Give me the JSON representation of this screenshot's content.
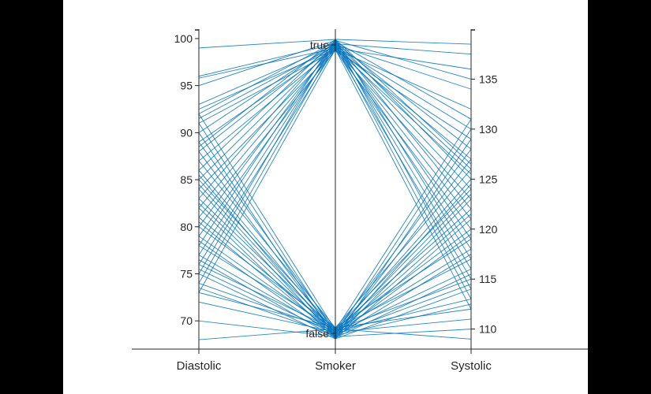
{
  "chart_data": {
    "type": "parallel-coordinates",
    "line_color": "#0072BD",
    "axes": [
      {
        "name": "Diastolic",
        "kind": "numeric",
        "range": [
          67,
          101
        ],
        "ticks": [
          70,
          75,
          80,
          85,
          90,
          95,
          100
        ],
        "tick_side": "left"
      },
      {
        "name": "Smoker",
        "kind": "categorical",
        "categories": [
          "false",
          "true"
        ],
        "tick_side": "left"
      },
      {
        "name": "Systolic",
        "kind": "numeric",
        "range": [
          108,
          140
        ],
        "ticks": [
          110,
          115,
          120,
          125,
          130,
          135
        ],
        "tick_side": "right"
      }
    ],
    "records": [
      {
        "d": 99,
        "s": "true",
        "y": 138.5
      },
      {
        "d": 96,
        "s": "true",
        "y": 137.5
      },
      {
        "d": 95.8,
        "s": "true",
        "y": 136
      },
      {
        "d": 95,
        "s": "true",
        "y": 135
      },
      {
        "d": 93,
        "s": "true",
        "y": 134
      },
      {
        "d": 92.5,
        "s": "true",
        "y": 132
      },
      {
        "d": 92,
        "s": "true",
        "y": 131
      },
      {
        "d": 91.5,
        "s": "true",
        "y": 130
      },
      {
        "d": 91,
        "s": "true",
        "y": 129
      },
      {
        "d": 90,
        "s": "true",
        "y": 128
      },
      {
        "d": 89,
        "s": "true",
        "y": 127
      },
      {
        "d": 88.5,
        "s": "true",
        "y": 126.5
      },
      {
        "d": 88,
        "s": "true",
        "y": 126
      },
      {
        "d": 87,
        "s": "true",
        "y": 125.5
      },
      {
        "d": 86,
        "s": "true",
        "y": 125
      },
      {
        "d": 85,
        "s": "true",
        "y": 124
      },
      {
        "d": 84,
        "s": "true",
        "y": 123
      },
      {
        "d": 83,
        "s": "true",
        "y": 122
      },
      {
        "d": 82,
        "s": "true",
        "y": 121
      },
      {
        "d": 81,
        "s": "true",
        "y": 120
      },
      {
        "d": 80,
        "s": "true",
        "y": 119
      },
      {
        "d": 79,
        "s": "true",
        "y": 118
      },
      {
        "d": 78,
        "s": "true",
        "y": 117
      },
      {
        "d": 77,
        "s": "true",
        "y": 116
      },
      {
        "d": 76,
        "s": "true",
        "y": 115
      },
      {
        "d": 75,
        "s": "true",
        "y": 114
      },
      {
        "d": 74,
        "s": "true",
        "y": 113
      },
      {
        "d": 73,
        "s": "true",
        "y": 112
      },
      {
        "d": 92,
        "s": "false",
        "y": 131
      },
      {
        "d": 91,
        "s": "false",
        "y": 130
      },
      {
        "d": 90,
        "s": "false",
        "y": 129
      },
      {
        "d": 89,
        "s": "false",
        "y": 128
      },
      {
        "d": 88,
        "s": "false",
        "y": 127
      },
      {
        "d": 87,
        "s": "false",
        "y": 126
      },
      {
        "d": 86,
        "s": "false",
        "y": 125
      },
      {
        "d": 85.5,
        "s": "false",
        "y": 124.5
      },
      {
        "d": 85,
        "s": "false",
        "y": 124
      },
      {
        "d": 84.5,
        "s": "false",
        "y": 123.5
      },
      {
        "d": 84,
        "s": "false",
        "y": 123
      },
      {
        "d": 83,
        "s": "false",
        "y": 122
      },
      {
        "d": 82.5,
        "s": "false",
        "y": 121.5
      },
      {
        "d": 82,
        "s": "false",
        "y": 121
      },
      {
        "d": 81,
        "s": "false",
        "y": 120
      },
      {
        "d": 80.5,
        "s": "false",
        "y": 119.5
      },
      {
        "d": 80,
        "s": "false",
        "y": 119
      },
      {
        "d": 79,
        "s": "false",
        "y": 118
      },
      {
        "d": 78.5,
        "s": "false",
        "y": 117.5
      },
      {
        "d": 78,
        "s": "false",
        "y": 117
      },
      {
        "d": 77,
        "s": "false",
        "y": 116
      },
      {
        "d": 76.5,
        "s": "false",
        "y": 115.5
      },
      {
        "d": 76,
        "s": "false",
        "y": 115
      },
      {
        "d": 75.5,
        "s": "false",
        "y": 114.5
      },
      {
        "d": 75,
        "s": "false",
        "y": 114
      },
      {
        "d": 74,
        "s": "false",
        "y": 113
      },
      {
        "d": 73.5,
        "s": "false",
        "y": 112.5
      },
      {
        "d": 73,
        "s": "false",
        "y": 112
      },
      {
        "d": 72,
        "s": "false",
        "y": 111
      },
      {
        "d": 70,
        "s": "false",
        "y": 110
      },
      {
        "d": 68,
        "s": "false",
        "y": 109
      }
    ]
  }
}
